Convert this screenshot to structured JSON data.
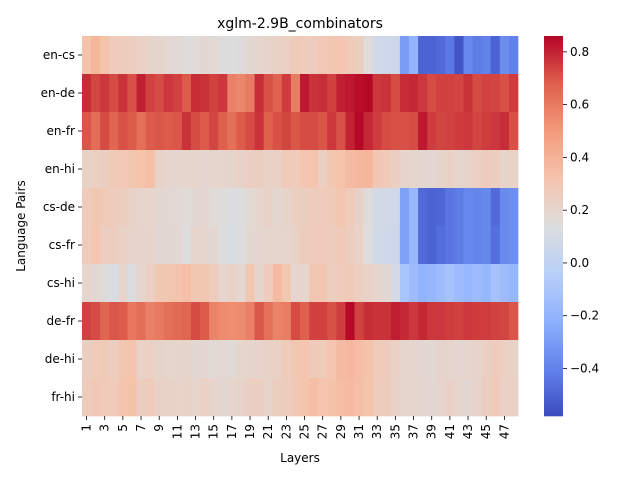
{
  "chart_data": {
    "type": "heatmap",
    "title": "xglm-2.9B_combinators",
    "xlabel": "Layers",
    "ylabel": "Language Pairs",
    "x_tick_labels": [
      "1",
      "3",
      "5",
      "7",
      "9",
      "11",
      "13",
      "15",
      "17",
      "19",
      "21",
      "23",
      "25",
      "27",
      "29",
      "31",
      "33",
      "35",
      "37",
      "39",
      "41",
      "43",
      "45",
      "47"
    ],
    "rows": [
      "en-cs",
      "en-de",
      "en-fr",
      "en-hi",
      "cs-de",
      "cs-fr",
      "cs-hi",
      "de-fr",
      "de-hi",
      "fr-hi"
    ],
    "columns": 48,
    "colorbar": {
      "min": -0.58,
      "max": 0.86,
      "ticks": [
        -0.4,
        -0.2,
        0.0,
        0.2,
        0.4,
        0.6,
        0.8
      ],
      "tick_labels": [
        "−0.4",
        "−0.2",
        "0.0",
        "0.2",
        "0.4",
        "0.6",
        "0.8"
      ],
      "colormap": "coolwarm"
    },
    "values": [
      [
        0.33,
        0.38,
        0.33,
        0.27,
        0.27,
        0.25,
        0.23,
        0.21,
        0.2,
        0.18,
        0.17,
        0.15,
        0.16,
        0.18,
        0.17,
        0.15,
        0.14,
        0.15,
        0.18,
        0.2,
        0.21,
        0.22,
        0.24,
        0.28,
        0.27,
        0.26,
        0.29,
        0.3,
        0.31,
        0.28,
        0.25,
        0.15,
        0.08,
        0.07,
        0.06,
        -0.3,
        -0.2,
        -0.5,
        -0.5,
        -0.48,
        -0.43,
        -0.55,
        -0.38,
        -0.42,
        -0.4,
        -0.5,
        -0.36,
        -0.4
      ],
      [
        0.78,
        0.73,
        0.76,
        0.72,
        0.77,
        0.71,
        0.81,
        0.74,
        0.72,
        0.76,
        0.74,
        0.69,
        0.78,
        0.77,
        0.74,
        0.76,
        0.58,
        0.56,
        0.6,
        0.78,
        0.71,
        0.67,
        0.75,
        0.59,
        0.82,
        0.77,
        0.78,
        0.74,
        0.81,
        0.82,
        0.84,
        0.85,
        0.76,
        0.77,
        0.72,
        0.78,
        0.79,
        0.76,
        0.72,
        0.74,
        0.74,
        0.73,
        0.77,
        0.72,
        0.74,
        0.73,
        0.71,
        0.75
      ],
      [
        0.7,
        0.64,
        0.72,
        0.66,
        0.71,
        0.69,
        0.63,
        0.69,
        0.7,
        0.69,
        0.7,
        0.77,
        0.72,
        0.69,
        0.73,
        0.68,
        0.63,
        0.69,
        0.72,
        0.77,
        0.68,
        0.71,
        0.73,
        0.7,
        0.72,
        0.72,
        0.7,
        0.76,
        0.71,
        0.8,
        0.85,
        0.79,
        0.75,
        0.72,
        0.71,
        0.71,
        0.72,
        0.82,
        0.75,
        0.73,
        0.74,
        0.75,
        0.76,
        0.73,
        0.75,
        0.76,
        0.78,
        0.71
      ],
      [
        0.22,
        0.24,
        0.25,
        0.28,
        0.29,
        0.3,
        0.33,
        0.34,
        0.22,
        0.2,
        0.19,
        0.2,
        0.2,
        0.19,
        0.2,
        0.2,
        0.21,
        0.22,
        0.24,
        0.25,
        0.22,
        0.23,
        0.28,
        0.27,
        0.31,
        0.32,
        0.24,
        0.3,
        0.33,
        0.36,
        0.37,
        0.38,
        0.3,
        0.28,
        0.24,
        0.21,
        0.2,
        0.19,
        0.19,
        0.21,
        0.23,
        0.2,
        0.21,
        0.24,
        0.26,
        0.25,
        0.21,
        0.22
      ],
      [
        0.27,
        0.3,
        0.28,
        0.26,
        0.25,
        0.22,
        0.2,
        0.2,
        0.19,
        0.18,
        0.17,
        0.16,
        0.18,
        0.19,
        0.16,
        0.15,
        0.13,
        0.14,
        0.17,
        0.2,
        0.22,
        0.19,
        0.21,
        0.24,
        0.25,
        0.26,
        0.27,
        0.28,
        0.3,
        0.27,
        0.22,
        0.15,
        0.09,
        0.08,
        0.07,
        -0.28,
        -0.18,
        -0.48,
        -0.5,
        -0.49,
        -0.44,
        -0.42,
        -0.38,
        -0.39,
        -0.38,
        -0.48,
        -0.37,
        -0.35
      ],
      [
        0.27,
        0.31,
        0.25,
        0.25,
        0.23,
        0.21,
        0.21,
        0.2,
        0.18,
        0.18,
        0.18,
        0.15,
        0.2,
        0.2,
        0.18,
        0.14,
        0.12,
        0.14,
        0.18,
        0.19,
        0.2,
        0.2,
        0.2,
        0.23,
        0.26,
        0.27,
        0.27,
        0.26,
        0.28,
        0.25,
        0.22,
        0.14,
        0.08,
        0.07,
        0.06,
        -0.28,
        -0.18,
        -0.48,
        -0.5,
        -0.47,
        -0.44,
        -0.42,
        -0.38,
        -0.39,
        -0.38,
        -0.46,
        -0.37,
        -0.35
      ],
      [
        0.2,
        0.18,
        0.15,
        0.12,
        0.2,
        0.13,
        0.2,
        0.24,
        0.3,
        0.3,
        0.32,
        0.34,
        0.3,
        0.3,
        0.26,
        0.2,
        0.22,
        0.19,
        0.3,
        0.2,
        0.26,
        0.36,
        0.3,
        0.2,
        0.2,
        0.3,
        0.3,
        0.25,
        0.27,
        0.28,
        0.24,
        0.22,
        0.2,
        0.18,
        0.1,
        -0.1,
        -0.15,
        -0.2,
        -0.18,
        -0.15,
        -0.12,
        -0.15,
        -0.18,
        -0.15,
        -0.18,
        -0.12,
        -0.15,
        -0.18
      ],
      [
        0.74,
        0.72,
        0.66,
        0.7,
        0.69,
        0.61,
        0.64,
        0.58,
        0.6,
        0.63,
        0.65,
        0.66,
        0.72,
        0.69,
        0.57,
        0.55,
        0.54,
        0.55,
        0.58,
        0.7,
        0.63,
        0.57,
        0.59,
        0.72,
        0.68,
        0.74,
        0.74,
        0.71,
        0.75,
        0.85,
        0.74,
        0.78,
        0.77,
        0.77,
        0.81,
        0.79,
        0.76,
        0.79,
        0.76,
        0.76,
        0.75,
        0.74,
        0.76,
        0.75,
        0.75,
        0.74,
        0.73,
        0.7
      ],
      [
        0.25,
        0.27,
        0.28,
        0.25,
        0.3,
        0.32,
        0.22,
        0.23,
        0.21,
        0.2,
        0.2,
        0.21,
        0.18,
        0.19,
        0.17,
        0.18,
        0.17,
        0.2,
        0.2,
        0.21,
        0.22,
        0.23,
        0.27,
        0.3,
        0.31,
        0.28,
        0.27,
        0.31,
        0.36,
        0.37,
        0.35,
        0.33,
        0.28,
        0.26,
        0.23,
        0.2,
        0.19,
        0.19,
        0.18,
        0.21,
        0.2,
        0.19,
        0.2,
        0.21,
        0.24,
        0.26,
        0.24,
        0.22
      ],
      [
        0.26,
        0.29,
        0.28,
        0.27,
        0.32,
        0.33,
        0.25,
        0.27,
        0.22,
        0.23,
        0.21,
        0.22,
        0.2,
        0.23,
        0.2,
        0.19,
        0.2,
        0.21,
        0.24,
        0.24,
        0.21,
        0.25,
        0.27,
        0.29,
        0.32,
        0.34,
        0.31,
        0.33,
        0.35,
        0.36,
        0.34,
        0.32,
        0.27,
        0.26,
        0.22,
        0.2,
        0.2,
        0.19,
        0.19,
        0.2,
        0.22,
        0.2,
        0.18,
        0.21,
        0.25,
        0.28,
        0.23,
        0.23
      ]
    ]
  }
}
